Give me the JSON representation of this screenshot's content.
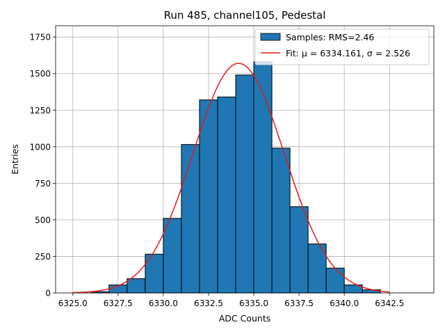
{
  "chart_data": {
    "type": "bar",
    "title": "Run 485, channel105, Pedestal",
    "xlabel": "ADC Counts",
    "ylabel": "Entries",
    "xlim": [
      6324.05,
      6344.95
    ],
    "ylim": [
      0,
      1827
    ],
    "xticks": [
      6325.0,
      6327.5,
      6330.0,
      6332.5,
      6335.0,
      6337.5,
      6340.0,
      6342.5
    ],
    "xtick_labels": [
      "6325.0",
      "6327.5",
      "6330.0",
      "6332.5",
      "6335.0",
      "6337.5",
      "6340.0",
      "6342.5"
    ],
    "yticks": [
      0,
      250,
      500,
      750,
      1000,
      1250,
      1500,
      1750
    ],
    "ytick_labels": [
      "0",
      "250",
      "500",
      "750",
      "1000",
      "1250",
      "1500",
      "1750"
    ],
    "grid": true,
    "legend_position": "top-right",
    "histogram": {
      "name": "Samples: RMS=2.46",
      "color": "#1f77b4",
      "edgecolor": "#000000",
      "bins": [
        {
          "x0": 6325.0,
          "x1": 6326.0,
          "count": 0
        },
        {
          "x0": 6326.0,
          "x1": 6327.0,
          "count": 8
        },
        {
          "x0": 6327.0,
          "x1": 6328.0,
          "count": 55
        },
        {
          "x0": 6328.0,
          "x1": 6329.0,
          "count": 98
        },
        {
          "x0": 6329.0,
          "x1": 6330.0,
          "count": 265
        },
        {
          "x0": 6330.0,
          "x1": 6331.0,
          "count": 510
        },
        {
          "x0": 6331.0,
          "x1": 6332.0,
          "count": 1015
        },
        {
          "x0": 6332.0,
          "x1": 6333.0,
          "count": 1320
        },
        {
          "x0": 6333.0,
          "x1": 6334.0,
          "count": 1340
        },
        {
          "x0": 6334.0,
          "x1": 6335.0,
          "count": 1490
        },
        {
          "x0": 6335.0,
          "x1": 6336.0,
          "count": 1580
        },
        {
          "x0": 6336.0,
          "x1": 6337.0,
          "count": 990
        },
        {
          "x0": 6337.0,
          "x1": 6338.0,
          "count": 590
        },
        {
          "x0": 6338.0,
          "x1": 6339.0,
          "count": 335
        },
        {
          "x0": 6339.0,
          "x1": 6340.0,
          "count": 170
        },
        {
          "x0": 6340.0,
          "x1": 6341.0,
          "count": 55
        },
        {
          "x0": 6341.0,
          "x1": 6342.0,
          "count": 22
        },
        {
          "x0": 6342.0,
          "x1": 6343.0,
          "count": 0
        },
        {
          "x0": 6343.0,
          "x1": 6344.0,
          "count": 0
        }
      ]
    },
    "fit": {
      "name": "Fit: μ = 6334.161, σ = 2.526",
      "color": "#e31a1c",
      "mu": 6334.161,
      "sigma": 2.526,
      "amplitude": 1570,
      "x_range": [
        6325.0,
        6342.5
      ]
    }
  }
}
